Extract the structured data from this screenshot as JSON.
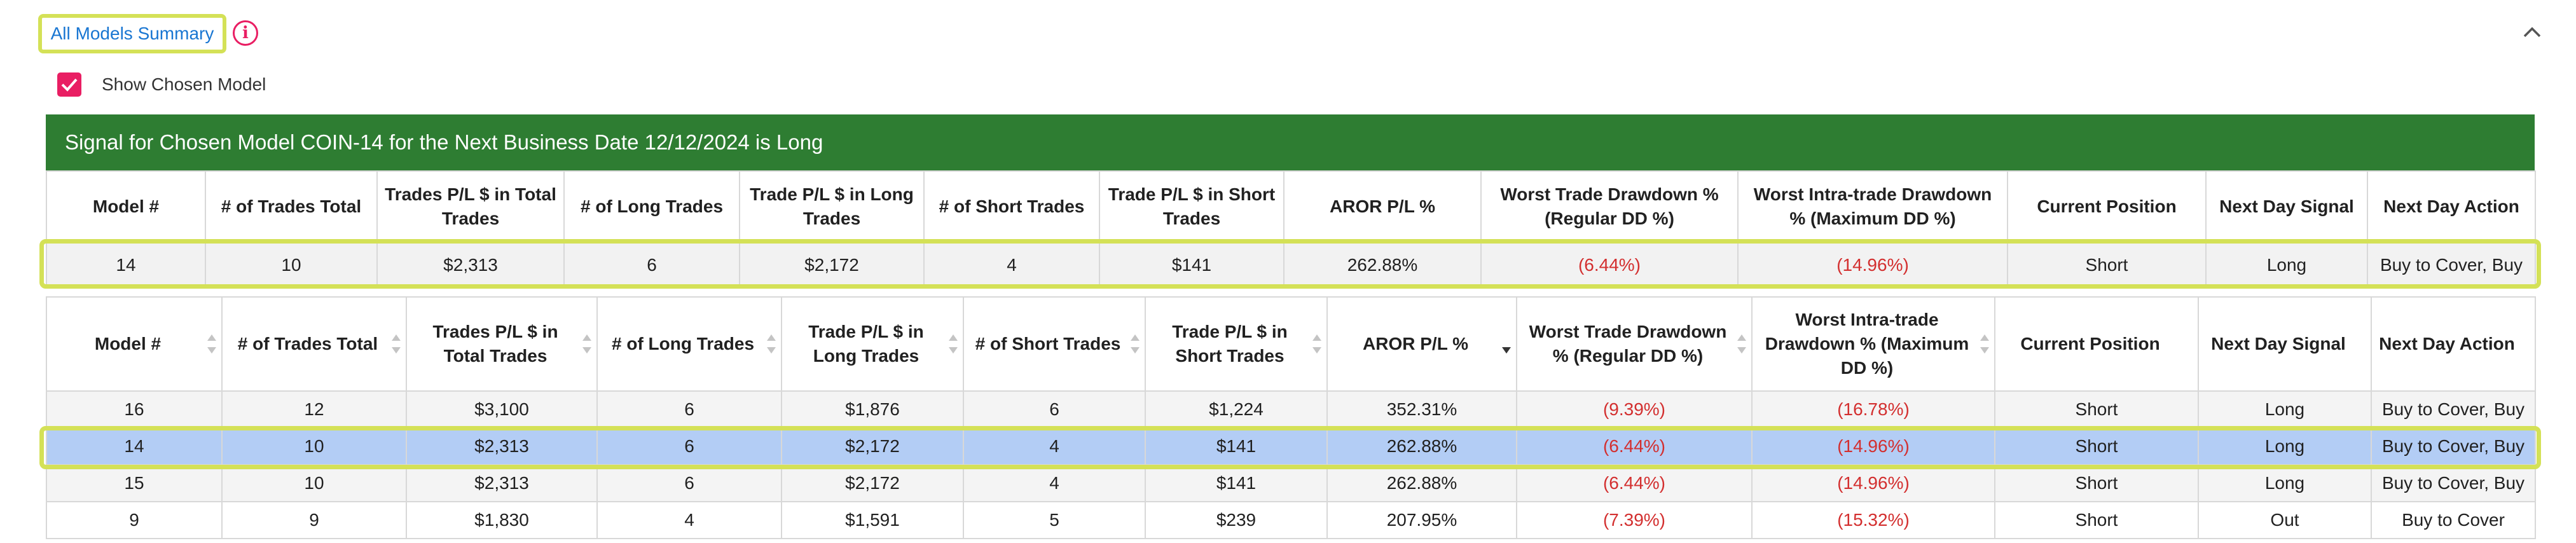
{
  "header": {
    "summary_link": "All Models Summary",
    "info_icon": "info-icon",
    "collapse_icon": "chevron-up-icon"
  },
  "show_chosen": {
    "label": "Show Chosen Model",
    "checked": true
  },
  "signal": {
    "text": "Signal for Chosen Model COIN-14 for the Next Business Date 12/12/2024 is Long"
  },
  "columns_chosen": [
    "Model #",
    "# of Trades Total",
    "Trades P/L $ in Total Trades",
    "# of Long Trades",
    "Trade P/L $ in Long Trades",
    "# of Short Trades",
    "Trade P/L $ in Short Trades",
    "AROR P/L %",
    "Worst Trade Drawdown % (Regular DD %)",
    "Worst Intra-trade Drawdown % (Maximum DD %)",
    "Current Position",
    "Next Day Signal",
    "Next Day Action"
  ],
  "chosen_row": [
    "14",
    "10",
    "$2,313",
    "6",
    "$2,172",
    "4",
    "$141",
    "262.88%",
    "(6.44%)",
    "(14.96%)",
    "Short",
    "Long",
    "Buy to Cover, Buy"
  ],
  "columns_models": [
    "Model #",
    "# of Trades Total",
    "Trades P/L $ in Total Trades",
    "# of Long Trades",
    "Trade P/L $ in Long Trades",
    "# of Short Trades",
    "Trade P/L $ in Short Trades",
    "AROR P/L %",
    "Worst Trade Drawdown % (Regular DD %)",
    "Worst Intra-trade Drawdown % (Maximum DD %)",
    "Current Position",
    "Next Day Signal",
    "Next Day Action"
  ],
  "sorted_column": "AROR P/L %",
  "sort_direction": "descending",
  "rows": [
    [
      "16",
      "12",
      "$3,100",
      "6",
      "$1,876",
      "6",
      "$1,224",
      "352.31%",
      "(9.39%)",
      "(16.78%)",
      "Short",
      "Long",
      "Buy to Cover, Buy"
    ],
    [
      "14",
      "10",
      "$2,313",
      "6",
      "$2,172",
      "4",
      "$141",
      "262.88%",
      "(6.44%)",
      "(14.96%)",
      "Short",
      "Long",
      "Buy to Cover, Buy"
    ],
    [
      "15",
      "10",
      "$2,313",
      "6",
      "$2,172",
      "4",
      "$141",
      "262.88%",
      "(6.44%)",
      "(14.96%)",
      "Short",
      "Long",
      "Buy to Cover, Buy"
    ],
    [
      "9",
      "9",
      "$1,830",
      "4",
      "$1,591",
      "5",
      "$239",
      "207.95%",
      "(7.39%)",
      "(15.32%)",
      "Short",
      "Out",
      "Buy to Cover"
    ]
  ],
  "selected_row_index": 1,
  "colors": {
    "banner": "#2e7d32",
    "accent": "#e91e63",
    "link": "#1976d2",
    "negative": "#d32f2f",
    "highlight": "#d4e157",
    "selected_row": "#b3cdf5"
  }
}
